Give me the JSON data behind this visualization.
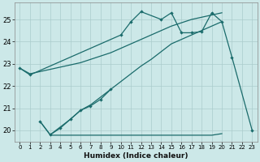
{
  "xlabel": "Humidex (Indice chaleur)",
  "background_color": "#cce8e8",
  "grid_color": "#aacccc",
  "line_color": "#1a6b6b",
  "xlim": [
    -0.5,
    23.5
  ],
  "ylim": [
    19.5,
    25.75
  ],
  "yticks": [
    20,
    21,
    22,
    23,
    24,
    25
  ],
  "xticks": [
    0,
    1,
    2,
    3,
    4,
    5,
    6,
    7,
    8,
    9,
    10,
    11,
    12,
    13,
    14,
    15,
    16,
    17,
    18,
    19,
    20,
    21,
    22,
    23
  ],
  "jagged_x": [
    0,
    1,
    10,
    11,
    12,
    14,
    15,
    16,
    17,
    18,
    19,
    20,
    21,
    23
  ],
  "jagged_y": [
    22.8,
    22.5,
    24.3,
    24.9,
    25.35,
    25.0,
    25.3,
    24.4,
    24.4,
    24.45,
    25.3,
    24.9,
    23.3,
    20.0
  ],
  "dotted_x": [
    2,
    3,
    4,
    5,
    6,
    7,
    8,
    9
  ],
  "dotted_y": [
    20.4,
    19.8,
    20.1,
    20.5,
    20.9,
    21.1,
    21.4,
    21.85
  ],
  "trend1_x": [
    0,
    1,
    2,
    3,
    4,
    5,
    6,
    7,
    8,
    9,
    10,
    11,
    12,
    13,
    14,
    15,
    16,
    17,
    18,
    19,
    20
  ],
  "trend1_y": [
    22.8,
    22.55,
    22.65,
    22.75,
    22.85,
    22.95,
    23.05,
    23.2,
    23.35,
    23.5,
    23.7,
    23.9,
    24.1,
    24.3,
    24.5,
    24.7,
    24.85,
    25.0,
    25.1,
    25.2,
    25.3
  ],
  "trend2_x": [
    2,
    3,
    4,
    5,
    6,
    7,
    8,
    9,
    10,
    11,
    12,
    13,
    14,
    15,
    16,
    17,
    18,
    19,
    20
  ],
  "trend2_y": [
    20.4,
    19.8,
    20.15,
    20.5,
    20.9,
    21.15,
    21.5,
    21.85,
    22.2,
    22.55,
    22.9,
    23.2,
    23.55,
    23.9,
    24.1,
    24.3,
    24.5,
    24.7,
    24.9
  ],
  "flat_x": [
    3,
    4,
    5,
    6,
    7,
    8,
    9,
    10,
    11,
    12,
    13,
    14,
    15,
    16,
    17,
    18,
    19,
    20
  ],
  "flat_y": [
    19.78,
    19.78,
    19.78,
    19.78,
    19.78,
    19.78,
    19.78,
    19.78,
    19.78,
    19.78,
    19.78,
    19.78,
    19.78,
    19.78,
    19.78,
    19.78,
    19.78,
    19.85
  ]
}
